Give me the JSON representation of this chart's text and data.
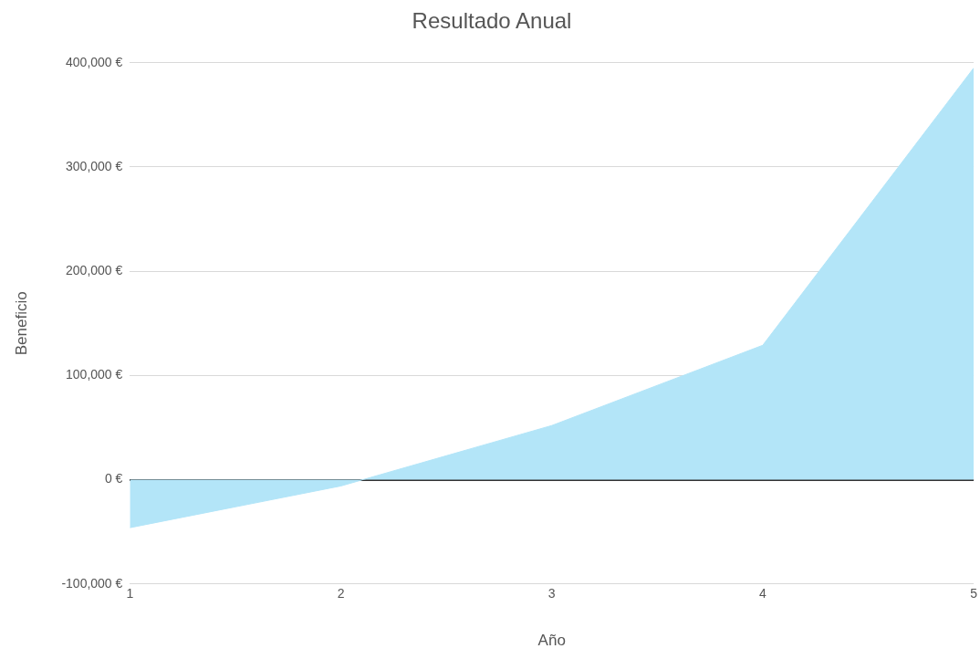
{
  "chart_data": {
    "type": "area",
    "title": "Resultado Anual",
    "xlabel": "Año",
    "ylabel": "Beneficio",
    "x": [
      1,
      2,
      3,
      4,
      5
    ],
    "series": [
      {
        "color": "#b3e5f8",
        "values": [
          -46000,
          -6000,
          52000,
          129000,
          395000
        ]
      }
    ],
    "xlim": [
      1,
      5
    ],
    "xticks": [
      1,
      2,
      3,
      4,
      5
    ],
    "ylim": [
      -100000,
      400000
    ],
    "yticks": [
      {
        "value": -100000,
        "label": "-100,000 €"
      },
      {
        "value": 0,
        "label": "0 €"
      },
      {
        "value": 100000,
        "label": "100,000 €"
      },
      {
        "value": 200000,
        "label": "200,000 €"
      },
      {
        "value": 300000,
        "label": "300,000 €"
      },
      {
        "value": 400000,
        "label": "400,000 €"
      }
    ],
    "grid": "y",
    "legend": false
  }
}
